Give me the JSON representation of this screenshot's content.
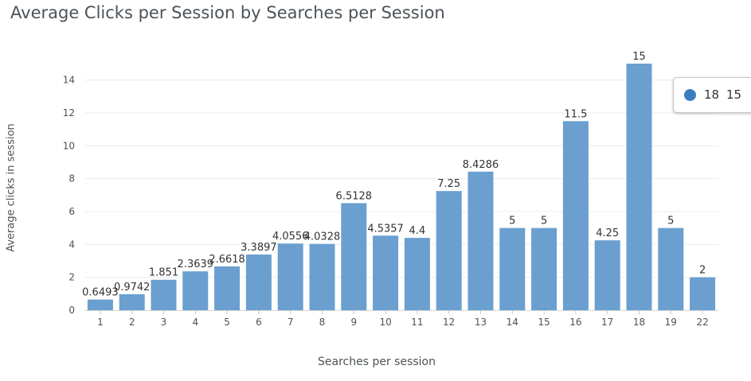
{
  "chart_data": {
    "type": "bar",
    "title": "Average Clicks per Session by Searches per Session",
    "xlabel": "Searches per session",
    "ylabel": "Average clicks in session",
    "categories": [
      "1",
      "2",
      "3",
      "4",
      "5",
      "6",
      "7",
      "8",
      "9",
      "10",
      "11",
      "12",
      "13",
      "14",
      "15",
      "16",
      "17",
      "18",
      "19",
      "22"
    ],
    "values": [
      0.6493,
      0.9742,
      1.851,
      2.3639,
      2.6618,
      3.3897,
      4.0556,
      4.0328,
      6.5128,
      4.5357,
      4.4,
      7.25,
      8.4286,
      5,
      5,
      11.5,
      4.25,
      15,
      5,
      2
    ],
    "ylim": [
      0,
      15
    ],
    "yticks": [
      0,
      2,
      4,
      6,
      8,
      10,
      12,
      14
    ],
    "grid": true,
    "bar_color": "#6a9fd0",
    "legend_dot_color": "#3a7ebf"
  },
  "legend": {
    "x_value": "18",
    "y_value": "15"
  }
}
